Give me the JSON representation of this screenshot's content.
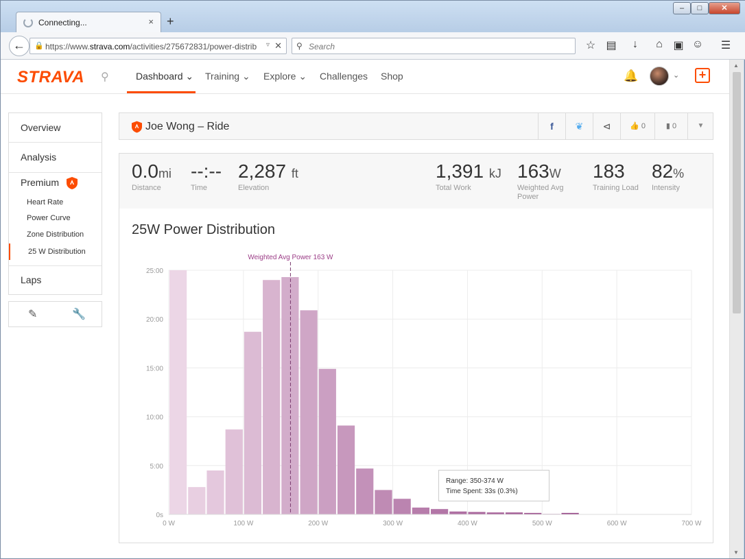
{
  "browser": {
    "tab_title": "Connecting...",
    "tab_close": "×",
    "new_tab": "+",
    "url_prefix": "https://www.",
    "url_domain": "strava.com",
    "url_rest": "/activities/275672831/power-distrib",
    "search_placeholder": "Search",
    "window_min": "–",
    "window_max": "□",
    "window_close": "✕"
  },
  "nav": {
    "logo": "STRAVA",
    "items": [
      {
        "label": "Dashboard ⌄"
      },
      {
        "label": "Training ⌄"
      },
      {
        "label": "Explore ⌄"
      },
      {
        "label": "Challenges"
      },
      {
        "label": "Shop"
      }
    ],
    "upload_symbol": "+"
  },
  "sidebar": {
    "items": [
      {
        "label": "Overview"
      },
      {
        "label": "Analysis"
      },
      {
        "label": "Premium"
      },
      {
        "label": "Laps"
      }
    ],
    "sub_items": [
      {
        "label": "Heart Rate"
      },
      {
        "label": "Power Curve"
      },
      {
        "label": "Zone Distribution"
      },
      {
        "label": "25 W Distribution"
      }
    ]
  },
  "activity": {
    "title": "Joe Wong – Ride",
    "kudos_count": "0",
    "comment_count": "0"
  },
  "stats": [
    {
      "value": "0.0",
      "unit": "mi",
      "label": "Distance"
    },
    {
      "value": "--:--",
      "unit": "",
      "label": "Time"
    },
    {
      "value": "2,287",
      "unit": "ft",
      "label": "Elevation"
    },
    {
      "value": "1,391",
      "unit": "kJ",
      "label": "Total Work"
    },
    {
      "value": "163",
      "unit": "W",
      "label": "Weighted Avg Power"
    },
    {
      "value": "183",
      "unit": "",
      "label": "Training Load"
    },
    {
      "value": "82",
      "unit": "%",
      "label": "Intensity"
    }
  ],
  "chart_data": {
    "type": "bar",
    "title": "25W Power Distribution",
    "xlabel": "",
    "ylabel": "",
    "x_ticks": [
      "0 W",
      "100 W",
      "200 W",
      "300 W",
      "400 W",
      "500 W",
      "600 W",
      "700 W"
    ],
    "y_ticks": [
      "0s",
      "5:00",
      "10:00",
      "15:00",
      "20:00",
      "25:00"
    ],
    "xlim": [
      0,
      700
    ],
    "ylim": [
      0,
      25
    ],
    "bin_width_w": 25,
    "bins_start_w": [
      0,
      25,
      50,
      75,
      100,
      125,
      150,
      175,
      200,
      225,
      250,
      275,
      300,
      325,
      350,
      375,
      400,
      425,
      450,
      475,
      500,
      525
    ],
    "values_min": [
      25.0,
      2.8,
      4.5,
      8.7,
      18.7,
      24.0,
      24.3,
      20.9,
      14.9,
      9.1,
      4.7,
      2.5,
      1.6,
      0.7,
      0.55,
      0.3,
      0.25,
      0.2,
      0.2,
      0.15,
      0.05,
      0.15
    ],
    "marker_value": 163,
    "marker_label": "Weighted Avg Power 163 W",
    "grid": true,
    "tooltip": {
      "range": "Range: 350-374 W",
      "time": "Time Spent: 33s (0.3%)"
    }
  }
}
